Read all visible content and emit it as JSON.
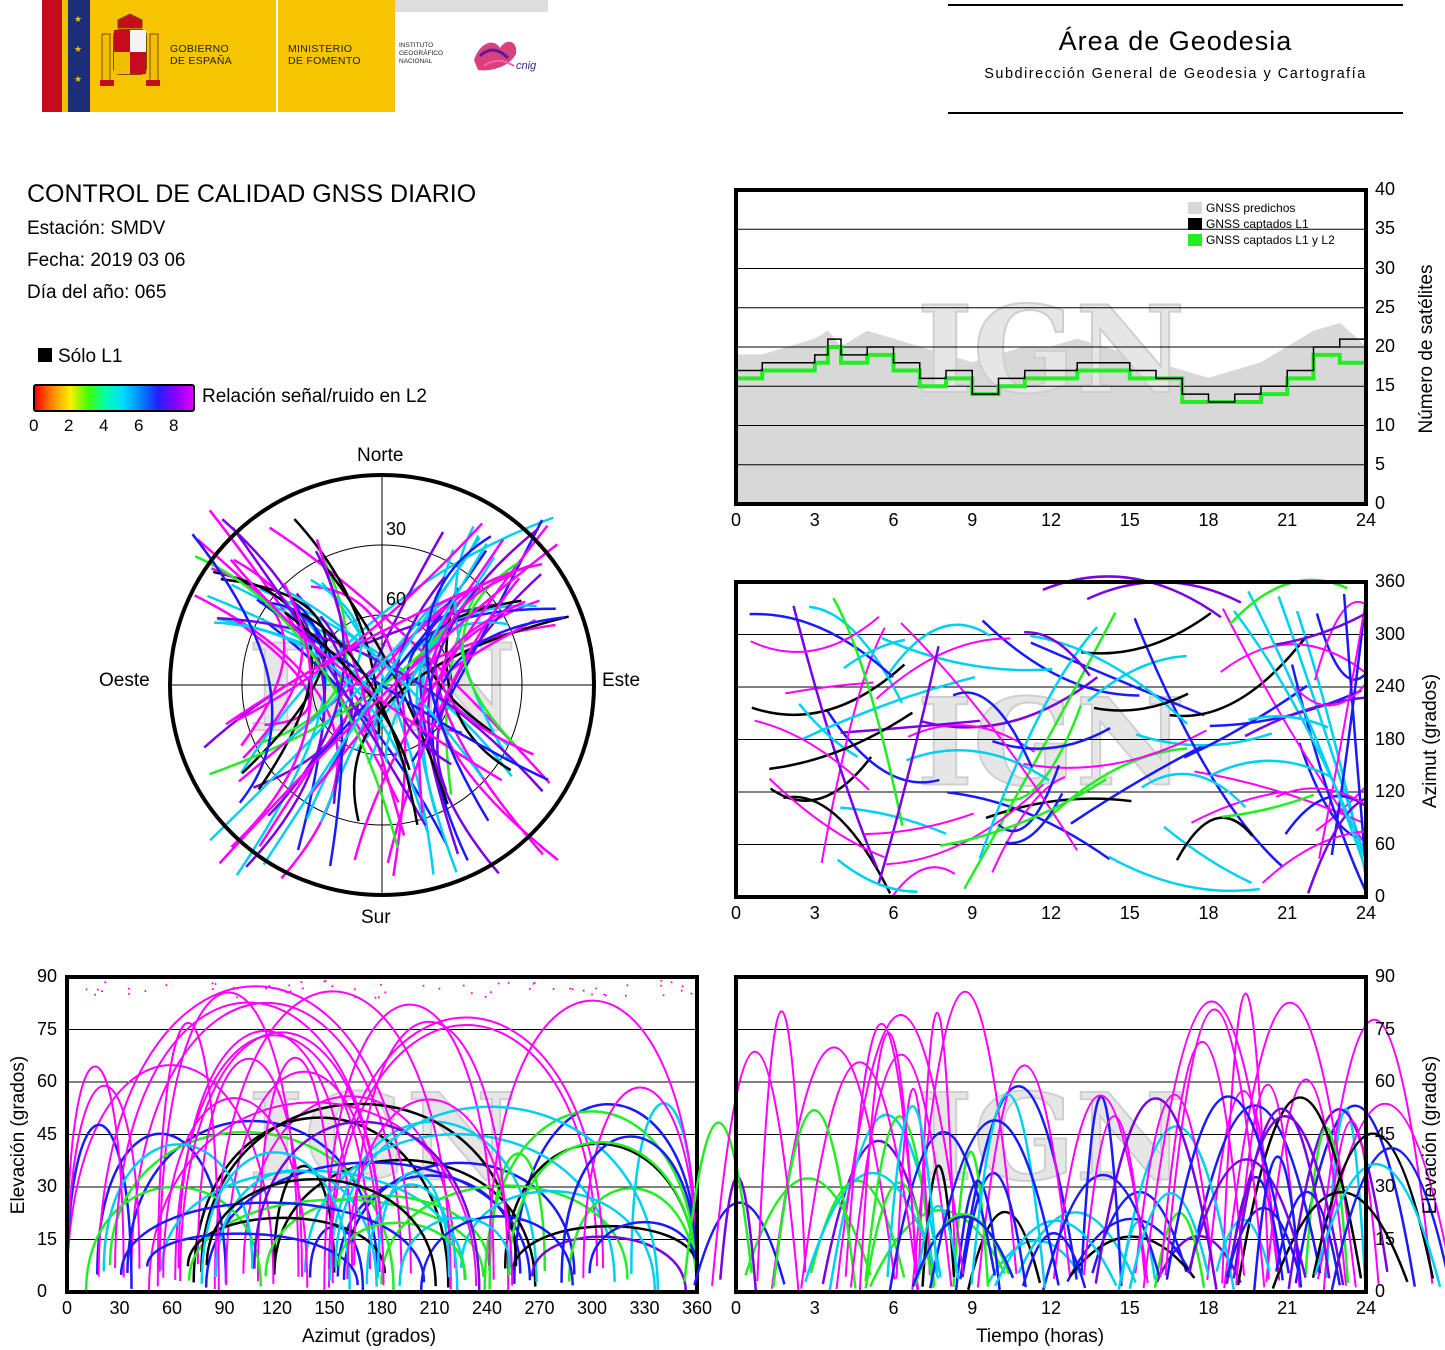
{
  "header": {
    "gov_left": "GOBIERNO\nDE ESPAÑA",
    "gov_right": "MINISTERIO\nDE FOMENTO",
    "ign_text": "INSTITUTO\nGEOGRÁFICO\nNACIONAL",
    "cnig_text": "cnig",
    "area_title": "Área de Geodesia",
    "area_subtitle": "Subdirección General de Geodesia y Cartografía"
  },
  "report": {
    "title": "CONTROL DE CALIDAD GNSS DIARIO",
    "station": "Estación: SMDV",
    "date": "Fecha: 2019 03 06",
    "doy": "Día del año: 065"
  },
  "legend": {
    "l1_only": "Sólo L1",
    "snr_label": "Relación señal/ruido en L2",
    "snr_ticks": [
      "0",
      "2",
      "4",
      "6",
      "8"
    ]
  },
  "watermark": "IGN",
  "colors": {
    "magenta": "#ff00ff",
    "blue": "#1a1aff",
    "violet": "#7a00e6",
    "cyan": "#00d0f0",
    "green": "#22ee22",
    "yellow": "#ffee00",
    "black": "#000000",
    "predicted": "#d8d8d8"
  },
  "chart_data": [
    {
      "type": "polar_skyplot",
      "directions": {
        "north": "Norte",
        "south": "Sur",
        "west": "Oeste",
        "east": "Este"
      },
      "ring_labels": [
        "30",
        "60"
      ],
      "elevation_rings": [
        30,
        60
      ]
    },
    {
      "type": "area",
      "ylabel": "Número de satélites",
      "xlim": [
        0,
        24
      ],
      "ylim": [
        0,
        40
      ],
      "x_ticks": [
        "0",
        "3",
        "6",
        "9",
        "12",
        "15",
        "18",
        "21",
        "24"
      ],
      "y_ticks": [
        "0",
        "5",
        "10",
        "15",
        "20",
        "25",
        "30",
        "35",
        "40"
      ],
      "legend": [
        "GNSS predichos",
        "GNSS captados L1",
        "GNSS captados L1 y L2"
      ],
      "series": [
        {
          "name": "GNSS predichos",
          "x": [
            0,
            1,
            2,
            3,
            3.5,
            4,
            5,
            6,
            7,
            8,
            9,
            10,
            11,
            12,
            13,
            14,
            15,
            16,
            17,
            18,
            19,
            20,
            21,
            22,
            23,
            24
          ],
          "values": [
            19,
            19,
            20,
            21,
            22,
            20,
            22,
            21,
            20,
            19,
            18,
            19,
            20,
            20,
            21,
            20,
            19,
            18,
            17,
            16,
            17,
            18,
            20,
            22,
            23,
            20
          ]
        },
        {
          "name": "GNSS captados L1",
          "x": [
            0,
            1,
            2,
            3,
            3.5,
            4,
            5,
            6,
            7,
            8,
            9,
            10,
            11,
            12,
            13,
            14,
            15,
            16,
            17,
            18,
            19,
            20,
            21,
            22,
            23,
            24
          ],
          "values": [
            17,
            18,
            18,
            19,
            21,
            19,
            20,
            18,
            16,
            17,
            14,
            16,
            17,
            17,
            18,
            18,
            17,
            16,
            14,
            13,
            14,
            15,
            17,
            20,
            21,
            18
          ]
        },
        {
          "name": "GNSS captados L1 y L2",
          "x": [
            0,
            1,
            2,
            3,
            3.5,
            4,
            5,
            6,
            7,
            8,
            9,
            10,
            11,
            12,
            13,
            14,
            15,
            16,
            17,
            18,
            19,
            20,
            21,
            22,
            23,
            24
          ],
          "values": [
            16,
            17,
            17,
            18,
            20,
            18,
            19,
            17,
            15,
            16,
            14,
            15,
            16,
            16,
            17,
            17,
            16,
            16,
            13,
            13,
            13,
            14,
            16,
            19,
            18,
            17
          ]
        }
      ]
    },
    {
      "type": "scatter",
      "ylabel": "Azimut (grados)",
      "xlim": [
        0,
        24
      ],
      "ylim": [
        0,
        360
      ],
      "x_ticks": [
        "0",
        "3",
        "6",
        "9",
        "12",
        "15",
        "18",
        "21",
        "24"
      ],
      "y_ticks": [
        "0",
        "60",
        "120",
        "180",
        "240",
        "300",
        "360"
      ]
    },
    {
      "type": "scatter",
      "xlabel": "Azimut (grados)",
      "ylabel": "Elevación (grados)",
      "xlim": [
        0,
        360
      ],
      "ylim": [
        0,
        90
      ],
      "x_ticks": [
        "0",
        "30",
        "60",
        "90",
        "120",
        "150",
        "180",
        "210",
        "240",
        "270",
        "300",
        "330",
        "360"
      ],
      "y_ticks": [
        "0",
        "15",
        "30",
        "45",
        "60",
        "75",
        "90"
      ]
    },
    {
      "type": "scatter",
      "xlabel": "Tiempo (horas)",
      "ylabel": "Elevación (grados)",
      "xlim": [
        0,
        24
      ],
      "ylim": [
        0,
        90
      ],
      "x_ticks": [
        "0",
        "3",
        "6",
        "9",
        "12",
        "15",
        "18",
        "21",
        "24"
      ],
      "y_ticks": [
        "0",
        "15",
        "30",
        "45",
        "60",
        "75",
        "90"
      ]
    }
  ]
}
